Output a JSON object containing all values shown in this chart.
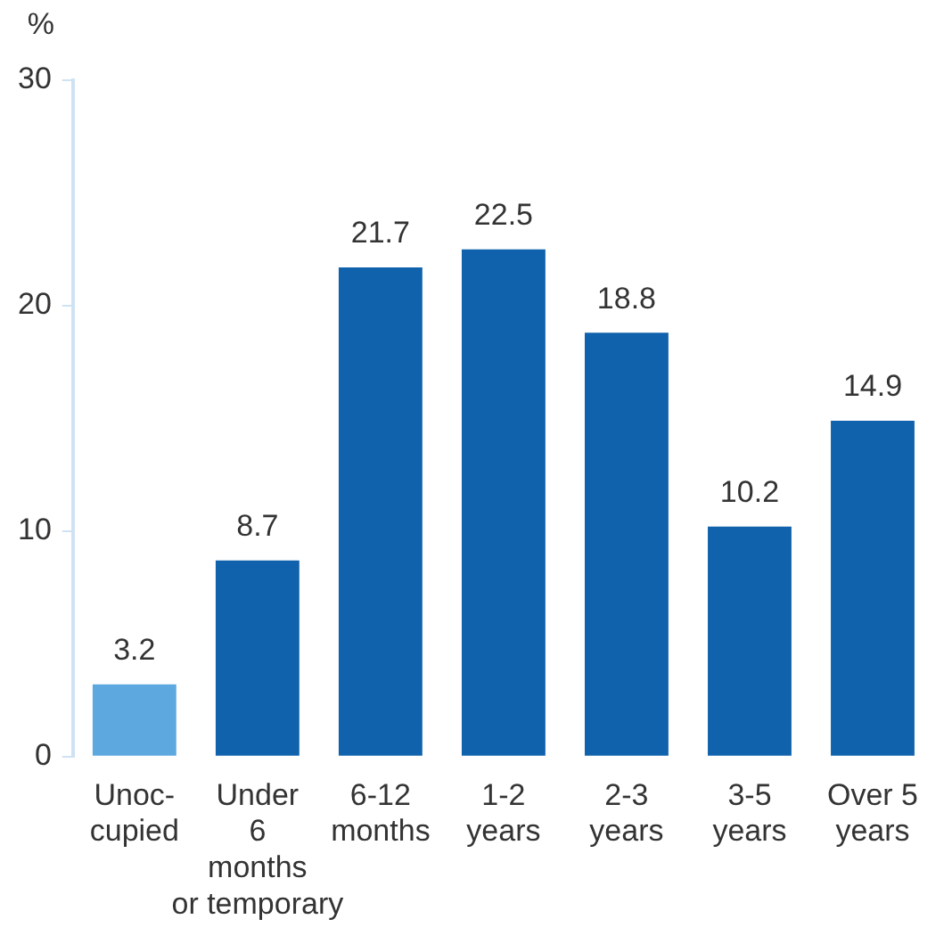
{
  "chart_data": {
    "type": "bar",
    "ylabel": "%",
    "categories": [
      "Unoc-\ncupied",
      "Under\n6\nmonths\nor temporary",
      "6-12\nmonths",
      "1-2\nyears",
      "2-3\nyears",
      "3-5\nyears",
      "Over 5\nyears"
    ],
    "values": [
      3.2,
      8.7,
      21.7,
      22.5,
      18.8,
      10.2,
      14.9
    ],
    "colors": [
      "#5ea8e0",
      "#0f62ab",
      "#0f62ab",
      "#0f62ab",
      "#0f62ab",
      "#0f62ab",
      "#0f62ab"
    ],
    "ylim": [
      0,
      30
    ],
    "yticks": [
      0,
      10,
      20,
      30
    ],
    "grid": false,
    "data_labels": true
  }
}
